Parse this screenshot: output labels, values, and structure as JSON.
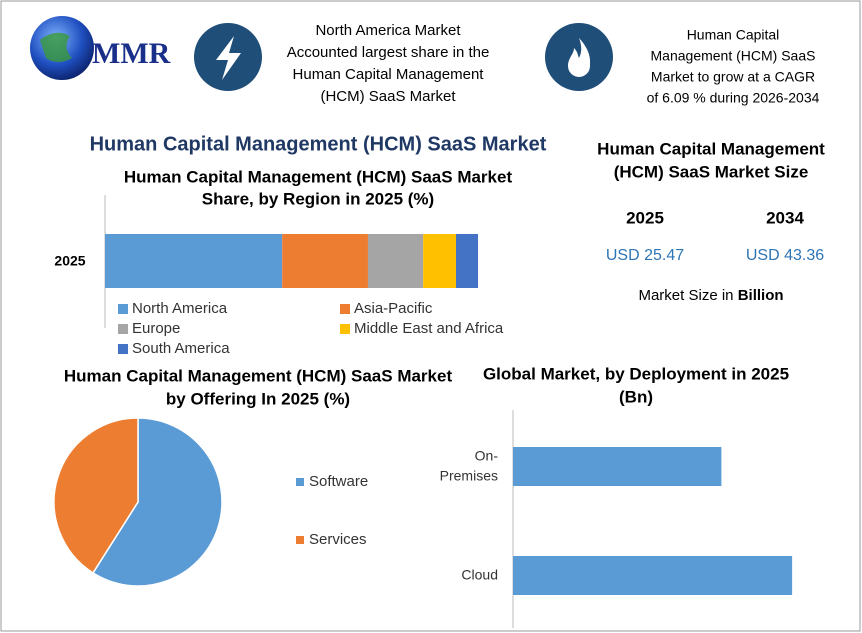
{
  "header": {
    "logo": "MMR",
    "info_left": [
      "North America Market",
      "Accounted largest share in the",
      "Human Capital Management",
      "(HCM) SaaS Market"
    ],
    "info_right": [
      "Human Capital",
      "Management (HCM) SaaS",
      "Market to grow at a CAGR",
      "of 6.09 % during 2026-2034"
    ]
  },
  "title": "Human Capital Management (HCM) SaaS Market",
  "market_size": {
    "title": [
      "Human Capital Management",
      "(HCM) SaaS Market Size"
    ],
    "years": [
      "2025",
      "2034"
    ],
    "values": [
      "USD 25.47",
      "USD  43.36"
    ],
    "note": "Market Size in",
    "note_unit": "Billion"
  },
  "chart_data": [
    {
      "type": "stacked_bar",
      "title": [
        "Human Capital Management (HCM) SaaS Market",
        "Share, by Region in 2025 (%)"
      ],
      "categories": [
        "2025"
      ],
      "xlim": [
        0,
        100
      ],
      "series": [
        {
          "name": "North America",
          "color": "#5b9bd5",
          "values": [
            47.5
          ]
        },
        {
          "name": "Asia-Pacific",
          "color": "#ed7d31",
          "values": [
            23
          ]
        },
        {
          "name": "Europe",
          "color": "#a5a5a5",
          "values": [
            14.8
          ]
        },
        {
          "name": "Middle East and Africa",
          "color": "#ffc000",
          "values": [
            8.8
          ]
        },
        {
          "name": "South America",
          "color": "#4472c4",
          "values": [
            5.9
          ]
        }
      ]
    },
    {
      "type": "pie",
      "title": [
        "Human Capital Management (HCM) SaaS Market",
        "by Offering In 2025 (%)"
      ],
      "categories": [
        "Software",
        "Services"
      ],
      "values": [
        59,
        41
      ],
      "colors": [
        "#5b9bd5",
        "#ed7d31"
      ]
    },
    {
      "type": "hbar",
      "title": [
        "Global Market, by Deployment in 2025",
        "(Bn)"
      ],
      "categories": [
        [
          "On-",
          "Premises"
        ],
        [
          "Cloud"
        ]
      ],
      "values": [
        10.9,
        14.6
      ],
      "xlim": [
        0,
        17
      ],
      "color": "#5b9bd5"
    }
  ]
}
